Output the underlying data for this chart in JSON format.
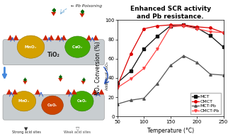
{
  "title": "Enhanced SCR activity\nand Pb resistance.",
  "xlabel": "Temperature (°C)",
  "ylabel": "NOₓ Conversion (%)",
  "xlim": [
    50,
    250
  ],
  "ylim": [
    0,
    100
  ],
  "xticks": [
    50,
    100,
    150,
    200,
    250
  ],
  "yticks": [
    0,
    20,
    40,
    60,
    80,
    100
  ],
  "series": {
    "MCT": {
      "x": [
        50,
        75,
        100,
        125,
        150,
        175,
        200,
        225,
        250
      ],
      "y": [
        35,
        47,
        70,
        83,
        94,
        95,
        92,
        84,
        72
      ],
      "color": "#111111",
      "marker": "s"
    },
    "CMCT": {
      "x": [
        50,
        75,
        100,
        125,
        150,
        175,
        200,
        225,
        250
      ],
      "y": [
        32,
        65,
        91,
        94,
        95,
        95,
        93,
        92,
        87
      ],
      "color": "#dd0000",
      "marker": "o"
    },
    "MCT-Pb": {
      "x": [
        50,
        75,
        100,
        125,
        150,
        175,
        200,
        225,
        250
      ],
      "y": [
        13,
        17,
        19,
        34,
        53,
        63,
        56,
        44,
        43
      ],
      "color": "#555555",
      "marker": "^"
    },
    "CMCT-Pb": {
      "x": [
        50,
        75,
        100,
        125,
        150,
        175,
        200,
        225,
        250
      ],
      "y": [
        30,
        39,
        50,
        70,
        93,
        94,
        91,
        88,
        87
      ],
      "color": "#ff4444",
      "marker": "v"
    }
  },
  "legend_order": [
    "MCT",
    "CMCT",
    "MCT-Pb",
    "CMCT-Pb"
  ],
  "title_fontsize": 6.5,
  "axis_fontsize": 5.5,
  "tick_fontsize": 5,
  "legend_fontsize": 4.5,
  "linewidth": 0.9,
  "markersize": 2.5,
  "bg_color": "#f0f0f0",
  "slab_color": "#c8cdd0",
  "mnox_color": "#d4a000",
  "ceox_color": "#44aa00",
  "coox_color": "#cc4400",
  "red_tri_color": "#cc2200",
  "blue_arrow_color": "#2255cc"
}
